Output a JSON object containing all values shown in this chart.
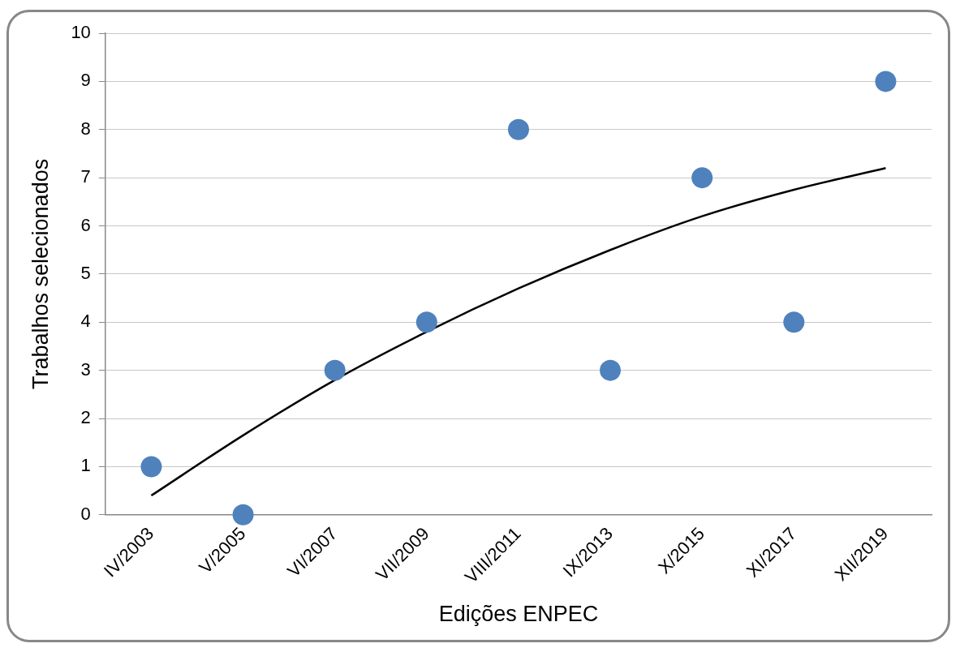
{
  "chart_data": {
    "type": "scatter",
    "xlabel": "Edições ENPEC",
    "ylabel": "Trabalhos selecionados",
    "categories": [
      "IV/2003",
      "V/2005",
      "VI/2007",
      "VII/2009",
      "VIII/2011",
      "IX/2013",
      "X/2015",
      "XI/2017",
      "XII/2019"
    ],
    "series": [
      {
        "color": "#4f81bd",
        "marker": "circle",
        "values": [
          1,
          0,
          3,
          4,
          8,
          3,
          7,
          4,
          9
        ]
      },
      {
        "type": "line",
        "color": "#000000",
        "marker": "none",
        "line_style": "solid",
        "values": [
          0.4,
          1.65,
          2.8,
          3.8,
          4.7,
          5.5,
          6.2,
          6.75,
          7.2
        ]
      }
    ],
    "ylim": [
      0,
      10
    ],
    "yticks": [
      0,
      1,
      2,
      3,
      4,
      5,
      6,
      7,
      8,
      9,
      10
    ],
    "grid": "y",
    "legend": false
  }
}
